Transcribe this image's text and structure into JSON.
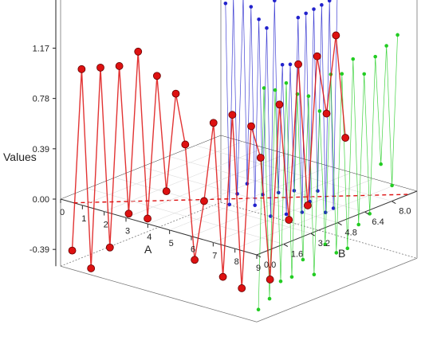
{
  "chart_data": {
    "type": "scatter",
    "ylabel": "Values",
    "xlabel": "A",
    "zlabel": "B",
    "z_ticks": [
      "1.17",
      "0.78",
      "0.39",
      "0.00",
      "-0.39"
    ],
    "z_tick_values": [
      1.17,
      0.78,
      0.39,
      0.0,
      -0.39
    ],
    "x_ticks": [
      "0",
      "1",
      "2",
      "3",
      "4",
      "5",
      "6",
      "7",
      "8",
      "9"
    ],
    "y_ticks": [
      "0.0",
      "1.6",
      "3.2",
      "4.8",
      "6.4",
      "8.0"
    ],
    "zlim": [
      -0.6,
      1.3
    ],
    "grid": true,
    "colors": {
      "blue": "#2222cc",
      "green": "#22cc22",
      "red": "#dd1111",
      "axis": "#222222",
      "zero_line": "#dd1111"
    },
    "series": [
      {
        "name": "",
        "color": "blue",
        "projection": "A-wall",
        "points": [
          [
            0.4,
            1.05
          ],
          [
            0.6,
            -0.5
          ],
          [
            0.8,
            1.12
          ],
          [
            1.0,
            -0.4
          ],
          [
            1.3,
            1.15
          ],
          [
            1.5,
            -0.3
          ],
          [
            1.7,
            1.08
          ],
          [
            1.9,
            -0.45
          ],
          [
            2.1,
            1.0
          ],
          [
            2.3,
            -0.35
          ],
          [
            2.5,
            0.95
          ],
          [
            2.7,
            -0.5
          ],
          [
            2.9,
            1.18
          ],
          [
            3.1,
            -0.3
          ],
          [
            3.3,
            0.7
          ],
          [
            3.5,
            -0.45
          ],
          [
            3.7,
            0.72
          ],
          [
            3.9,
            -0.25
          ],
          [
            4.1,
            1.1
          ],
          [
            4.3,
            -0.4
          ],
          [
            4.5,
            1.15
          ],
          [
            4.7,
            -0.3
          ],
          [
            4.9,
            1.2
          ],
          [
            5.1,
            -0.2
          ],
          [
            5.3,
            1.25
          ],
          [
            5.5,
            -0.35
          ],
          [
            5.7,
            1.3
          ],
          [
            5.9,
            -0.3
          ],
          [
            6.1,
            1.38
          ]
        ]
      },
      {
        "name": "",
        "color": "green",
        "projection": "B-wall",
        "points": [
          [
            0.3,
            -0.45
          ],
          [
            0.6,
            1.25
          ],
          [
            0.9,
            -0.4
          ],
          [
            1.2,
            1.2
          ],
          [
            1.5,
            -0.3
          ],
          [
            1.8,
            1.22
          ],
          [
            2.1,
            -0.3
          ],
          [
            2.4,
            1.1
          ],
          [
            2.7,
            -0.2
          ],
          [
            3.0,
            1.05
          ],
          [
            3.3,
            -0.35
          ],
          [
            3.6,
            0.9
          ],
          [
            3.9,
            -0.15
          ],
          [
            4.2,
            1.15
          ],
          [
            4.5,
            -0.25
          ],
          [
            4.8,
            1.12
          ],
          [
            5.1,
            -0.25
          ],
          [
            5.4,
            1.2
          ],
          [
            5.7,
            -0.1
          ],
          [
            6.0,
            1.05
          ],
          [
            6.3,
            -0.05
          ],
          [
            6.6,
            1.15
          ],
          [
            6.9,
            0.3
          ],
          [
            7.2,
            1.2
          ],
          [
            7.5,
            0.1
          ],
          [
            7.8,
            1.25
          ]
        ]
      },
      {
        "name": "",
        "color": "red",
        "projection": "3D",
        "points": [
          [
            0.3,
            0.3,
            -0.4
          ],
          [
            0.5,
            0.6,
            1.0
          ],
          [
            0.7,
            0.9,
            -0.55
          ],
          [
            0.9,
            1.2,
            1.0
          ],
          [
            1.1,
            1.5,
            -0.4
          ],
          [
            1.3,
            1.8,
            1.0
          ],
          [
            1.5,
            2.1,
            -0.15
          ],
          [
            1.7,
            2.4,
            1.1
          ],
          [
            1.9,
            2.7,
            -0.2
          ],
          [
            2.1,
            3.0,
            0.9
          ],
          [
            2.3,
            3.3,
            0.0
          ],
          [
            2.5,
            3.6,
            0.75
          ],
          [
            2.7,
            3.9,
            0.35
          ],
          [
            2.9,
            4.2,
            -0.55
          ],
          [
            3.1,
            4.5,
            -0.1
          ],
          [
            3.3,
            4.8,
            0.5
          ],
          [
            3.5,
            5.1,
            -0.7
          ],
          [
            3.7,
            5.4,
            0.55
          ],
          [
            3.9,
            5.7,
            -0.8
          ],
          [
            4.1,
            6.0,
            0.45
          ],
          [
            4.3,
            6.3,
            0.2
          ],
          [
            4.5,
            6.6,
            -0.75
          ],
          [
            4.7,
            6.9,
            0.6
          ],
          [
            4.9,
            7.2,
            -0.3
          ],
          [
            5.1,
            7.5,
            0.9
          ],
          [
            5.3,
            7.8,
            -0.2
          ],
          [
            5.5,
            8.1,
            0.95
          ],
          [
            5.7,
            8.4,
            0.5
          ],
          [
            5.9,
            8.7,
            1.1
          ],
          [
            6.1,
            9.0,
            0.3
          ]
        ]
      }
    ]
  }
}
